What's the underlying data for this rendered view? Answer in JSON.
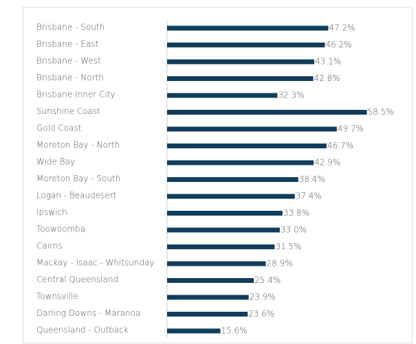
{
  "chart_data": {
    "type": "barh",
    "categories": [
      "Brisbane - South",
      "Brisbane - East",
      "Brisbane - West",
      "Brisbane - North",
      "Brisbane Inner City",
      "Sunshine Coast",
      "Gold Coast",
      "Moreton Bay - North",
      "Wide Bay",
      "Moreton Bay - South",
      "Logan - Beaudesert",
      "Ipswich",
      "Toowoomba",
      "Cairns",
      "Mackay - Isaac - Whitsunday",
      "Central Queensland",
      "Townsville",
      "Darling Downs - Maranoa",
      "Queensland - Outback"
    ],
    "values": [
      47.2,
      46.2,
      43.1,
      42.8,
      32.3,
      58.5,
      49.7,
      46.7,
      42.9,
      38.4,
      37.4,
      33.8,
      33.0,
      31.5,
      28.9,
      25.4,
      23.9,
      23.6,
      15.6
    ],
    "value_labels": [
      "47.2%",
      "46.2%",
      "43.1%",
      "42.8%",
      "32.3%",
      "58.5%",
      "49.7%",
      "46.7%",
      "42.9%",
      "38.4%",
      "37.4%",
      "33.8%",
      "33.0%",
      "31.5%",
      "28.9%",
      "25.4%",
      "23.9%",
      "23.6%",
      "15.6%"
    ],
    "color": "#123d5c",
    "xlim": [
      0,
      60
    ]
  }
}
